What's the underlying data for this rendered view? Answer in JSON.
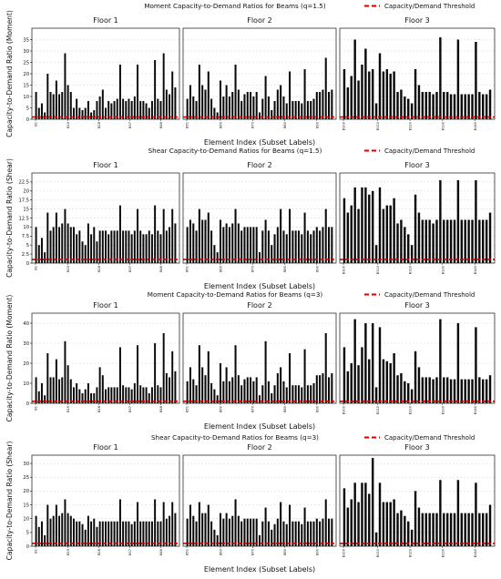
{
  "colors": {
    "bar": "#0a0a0a",
    "threshold": "#d40000",
    "grid": "#d0d0d0"
  },
  "chart_data": [
    {
      "type": "bar",
      "title": "Moment Capacity-to-Demand Ratios for Beams (q=1.5)",
      "ylabel": "Capacity-to-Demand Ratio (Moment)",
      "xlabel": "Element Index (Subset Labels)",
      "legend": "Capacity/Demand Threshold",
      "legend_position": "top-right",
      "threshold": 1,
      "grid": true,
      "ylim": [
        0,
        40
      ],
      "ticks": [
        0,
        5,
        10,
        15,
        20,
        25,
        30,
        35
      ],
      "panels": [
        {
          "title": "Floor 1",
          "xticks": [
            "B1",
            "B19",
            "B28",
            "B37",
            "B46"
          ],
          "values": [
            12,
            5,
            7,
            3,
            20,
            12,
            11,
            17,
            11,
            12,
            29,
            15,
            12,
            5,
            9,
            5,
            4,
            5,
            8,
            3,
            4,
            8,
            10,
            13,
            5,
            8,
            7,
            8,
            9,
            24,
            9,
            8,
            9,
            8,
            10,
            24,
            8,
            8,
            7,
            5,
            8,
            26,
            9,
            8,
            29,
            13,
            11,
            21,
            14
          ]
        },
        {
          "title": "Floor 2",
          "xticks": [
            "B51",
            "B60",
            "B70",
            "B80",
            "B90"
          ],
          "values": [
            9,
            15,
            10,
            8,
            24,
            15,
            13,
            21,
            9,
            5,
            3,
            17,
            10,
            15,
            10,
            12,
            24,
            13,
            8,
            11,
            12,
            12,
            10,
            12,
            3,
            9,
            19,
            10,
            4,
            8,
            13,
            15,
            10,
            7,
            21,
            8,
            8,
            8,
            7,
            22,
            8,
            8,
            9,
            12,
            12,
            13,
            27,
            12,
            13
          ]
        },
        {
          "title": "Floor 3",
          "xticks": [
            "B100",
            "B110",
            "B120",
            "B130",
            "B140"
          ],
          "values": [
            22,
            14,
            19,
            35,
            17,
            24,
            31,
            21,
            22,
            7,
            29,
            21,
            22,
            20,
            21,
            12,
            13,
            10,
            9,
            7,
            22,
            15,
            12,
            12,
            12,
            11,
            12,
            36,
            12,
            12,
            11,
            11,
            35,
            11,
            11,
            11,
            11,
            34,
            12,
            11,
            11,
            13
          ]
        }
      ]
    },
    {
      "type": "bar",
      "title": "Shear Capacity-to-Demand Ratios for Beams (q=1.5)",
      "ylabel": "Capacity-to-Demand Ratio (Shear)",
      "xlabel": "Element Index (Subset Labels)",
      "legend": "Capacity/Demand Threshold",
      "legend_position": "top-right",
      "threshold": 1,
      "grid": true,
      "ylim": [
        0,
        25
      ],
      "ticks": [
        0,
        2.5,
        5,
        7.5,
        10,
        12.5,
        15,
        17.5,
        20,
        22.5
      ],
      "panels": [
        {
          "title": "Floor 1",
          "xticks": [
            "B1",
            "B19",
            "B28",
            "B37",
            "B46"
          ],
          "values": [
            10,
            5,
            7,
            3,
            14,
            9,
            10,
            14,
            10,
            11,
            15,
            11,
            10,
            10,
            8,
            9,
            6,
            5,
            11,
            8,
            10,
            6,
            9,
            9,
            9,
            8,
            9,
            9,
            9,
            16,
            9,
            9,
            9,
            8,
            9,
            15,
            9,
            8,
            8,
            9,
            8,
            16,
            9,
            8,
            15,
            9,
            10,
            15,
            11
          ]
        },
        {
          "title": "Floor 2",
          "xticks": [
            "B51",
            "B60",
            "B70",
            "B80",
            "B90"
          ],
          "values": [
            10,
            12,
            11,
            9,
            15,
            12,
            12,
            14,
            9,
            5,
            3,
            12,
            10,
            11,
            10,
            11,
            15,
            11,
            9,
            10,
            10,
            10,
            10,
            10,
            3,
            9,
            12,
            9,
            5,
            8,
            10,
            15,
            9,
            8,
            15,
            9,
            9,
            9,
            8,
            14,
            9,
            8,
            9,
            10,
            9,
            10,
            15,
            10,
            10
          ]
        },
        {
          "title": "Floor 3",
          "xticks": [
            "B100",
            "B110",
            "B120",
            "B130",
            "B140"
          ],
          "values": [
            18,
            14,
            16,
            21,
            15,
            21,
            21,
            19,
            20,
            5,
            21,
            15,
            16,
            16,
            18,
            11,
            12,
            10,
            8,
            5,
            19,
            14,
            12,
            12,
            12,
            11,
            12,
            23,
            12,
            12,
            12,
            12,
            23,
            12,
            12,
            12,
            12,
            23,
            12,
            12,
            12,
            14
          ]
        }
      ]
    },
    {
      "type": "bar",
      "title": "Moment Capacity-to-Demand Ratios for Beams (q=3)",
      "ylabel": "Capacity-to-Demand Ratio (Moment)",
      "xlabel": "Element Index (Subset Labels)",
      "legend": "Capacity/Demand Threshold",
      "legend_position": "top-right",
      "threshold": 1,
      "grid": true,
      "ylim": [
        0,
        45
      ],
      "ticks": [
        0,
        10,
        20,
        30,
        40
      ],
      "panels": [
        {
          "title": "Floor 1",
          "xticks": [
            "B1",
            "B19",
            "B28",
            "B37",
            "B46"
          ],
          "values": [
            13,
            6,
            10,
            4,
            25,
            13,
            13,
            22,
            12,
            13,
            31,
            19,
            12,
            8,
            10,
            7,
            5,
            7,
            10,
            5,
            5,
            8,
            18,
            14,
            7,
            8,
            8,
            8,
            8,
            28,
            9,
            8,
            8,
            7,
            10,
            29,
            9,
            8,
            8,
            5,
            8,
            30,
            9,
            8,
            35,
            15,
            13,
            26,
            16
          ]
        },
        {
          "title": "Floor 2",
          "xticks": [
            "B51",
            "B60",
            "B70",
            "B80",
            "B90"
          ],
          "values": [
            11,
            18,
            12,
            9,
            29,
            18,
            14,
            26,
            10,
            7,
            4,
            20,
            11,
            18,
            11,
            13,
            29,
            14,
            9,
            12,
            13,
            13,
            11,
            13,
            4,
            9,
            31,
            11,
            5,
            9,
            15,
            18,
            11,
            8,
            25,
            9,
            9,
            9,
            8,
            27,
            9,
            9,
            10,
            14,
            14,
            15,
            35,
            13,
            15
          ]
        },
        {
          "title": "Floor 3",
          "xticks": [
            "B100",
            "B110",
            "B120",
            "B130",
            "B140"
          ],
          "values": [
            28,
            16,
            20,
            42,
            19,
            28,
            40,
            22,
            40,
            8,
            38,
            22,
            21,
            20,
            25,
            14,
            15,
            11,
            10,
            7,
            26,
            18,
            13,
            13,
            13,
            12,
            13,
            42,
            13,
            13,
            12,
            12,
            40,
            12,
            12,
            12,
            12,
            38,
            13,
            12,
            12,
            14
          ]
        }
      ]
    },
    {
      "type": "bar",
      "title": "Shear Capacity-to-Demand Ratios for Beams (q=3)",
      "ylabel": "Capacity-to-Demand Ratio (Shear)",
      "xlabel": "Element Index (Subset Labels)",
      "legend": "Capacity/Demand Threshold",
      "legend_position": "top-right",
      "threshold": 1,
      "grid": true,
      "ylim": [
        0,
        33
      ],
      "ticks": [
        0,
        5,
        10,
        15,
        20,
        25,
        30
      ],
      "panels": [
        {
          "title": "Floor 1",
          "xticks": [
            "B1",
            "B19",
            "B28",
            "B37",
            "B46"
          ],
          "values": [
            11,
            7,
            9,
            4,
            15,
            10,
            11,
            15,
            11,
            12,
            17,
            12,
            11,
            10,
            9,
            9,
            8,
            6,
            11,
            9,
            10,
            7,
            9,
            9,
            9,
            9,
            9,
            9,
            9,
            17,
            9,
            9,
            9,
            8,
            9,
            16,
            9,
            9,
            9,
            9,
            9,
            17,
            9,
            9,
            16,
            10,
            11,
            16,
            12
          ]
        },
        {
          "title": "Floor 2",
          "xticks": [
            "B51",
            "B60",
            "B70",
            "B80",
            "B90"
          ],
          "values": [
            10,
            15,
            11,
            9,
            16,
            12,
            12,
            15,
            9,
            6,
            4,
            12,
            10,
            12,
            10,
            11,
            17,
            11,
            9,
            10,
            10,
            10,
            10,
            10,
            4,
            9,
            14,
            9,
            6,
            8,
            10,
            16,
            9,
            8,
            15,
            9,
            9,
            9,
            8,
            14,
            9,
            9,
            9,
            10,
            9,
            10,
            17,
            10,
            10
          ]
        },
        {
          "title": "Floor 3",
          "xticks": [
            "B100",
            "B110",
            "B120",
            "B130",
            "B140"
          ],
          "values": [
            21,
            14,
            17,
            23,
            16,
            23,
            23,
            19,
            32,
            5,
            23,
            16,
            16,
            16,
            17,
            12,
            13,
            11,
            9,
            6,
            20,
            14,
            12,
            12,
            12,
            12,
            12,
            24,
            12,
            12,
            12,
            12,
            24,
            12,
            12,
            12,
            12,
            23,
            12,
            12,
            12,
            15
          ]
        }
      ]
    }
  ]
}
